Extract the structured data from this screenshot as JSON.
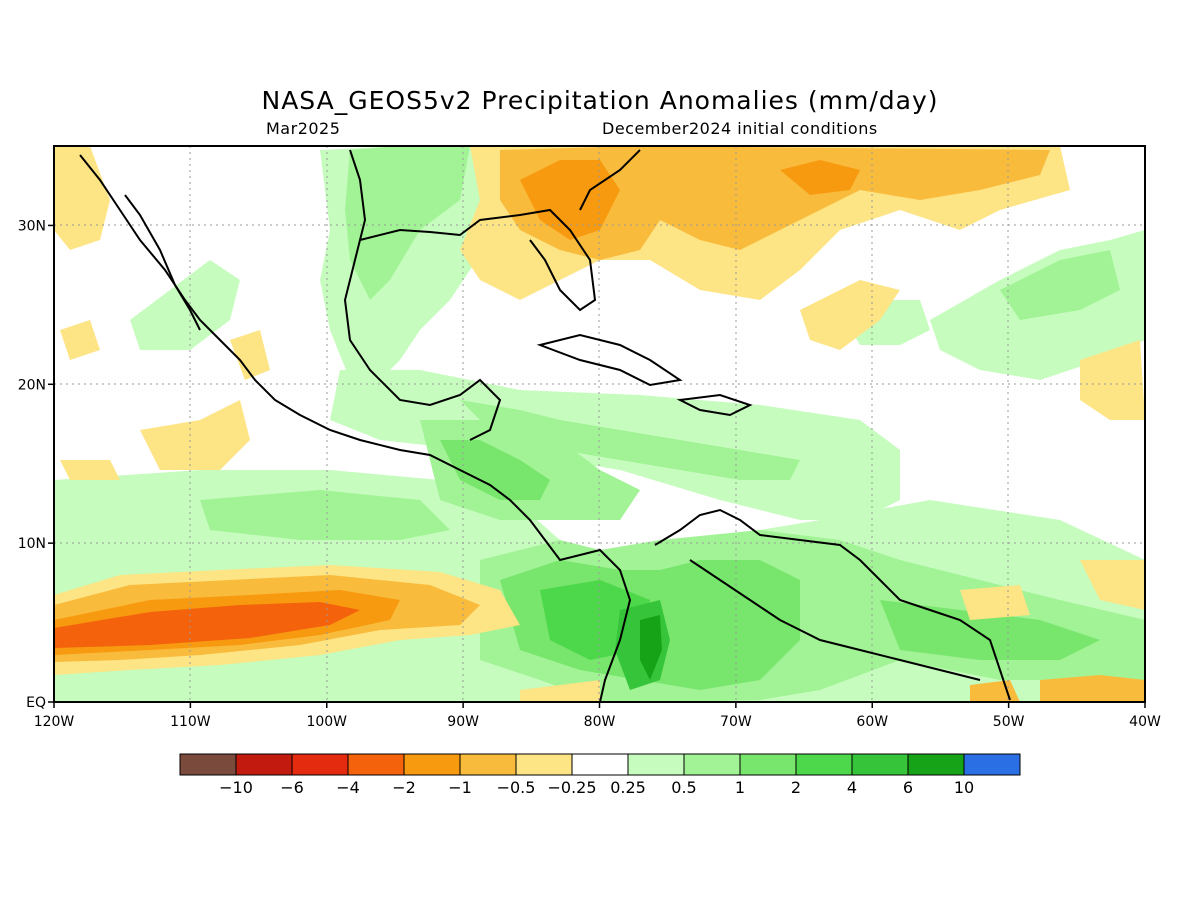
{
  "header": {
    "title": "NASA_GEOS5v2 Precipitation Anomalies (mm/day)",
    "subtitle_left": "Mar2025",
    "subtitle_right": "December2024 initial conditions"
  },
  "map": {
    "lon_range": [
      -120,
      -40
    ],
    "lat_range": [
      0,
      35
    ],
    "lat_ticks": [
      {
        "lat": 30,
        "label": "30N"
      },
      {
        "lat": 20,
        "label": "20N"
      },
      {
        "lat": 10,
        "label": "10N"
      },
      {
        "lat": 0,
        "label": "EQ"
      }
    ],
    "lon_ticks": [
      {
        "lon": -120,
        "label": "120W"
      },
      {
        "lon": -110,
        "label": "110W"
      },
      {
        "lon": -100,
        "label": "100W"
      },
      {
        "lon": -90,
        "label": "90W"
      },
      {
        "lon": -80,
        "label": "80W"
      },
      {
        "lon": -70,
        "label": "70W"
      },
      {
        "lon": -60,
        "label": "60W"
      },
      {
        "lon": -50,
        "label": "50W"
      },
      {
        "lon": -40,
        "label": "40W"
      }
    ],
    "grid": "dotted"
  },
  "colorbar": {
    "colors": [
      "#7a4a3d",
      "#c21a0f",
      "#e42a0f",
      "#f4620c",
      "#f79a10",
      "#f9bb3c",
      "#fde484",
      "#ffffff",
      "#c6fcbe",
      "#a2f396",
      "#78e56c",
      "#4cd84a",
      "#36c53a",
      "#16a318",
      "#2b6fe4"
    ],
    "labels": [
      "−10",
      "−6",
      "−4",
      "−2",
      "−1",
      "−0.5",
      "−0.25",
      "0.25",
      "0.5",
      "1",
      "2",
      "4",
      "6",
      "10"
    ]
  }
}
